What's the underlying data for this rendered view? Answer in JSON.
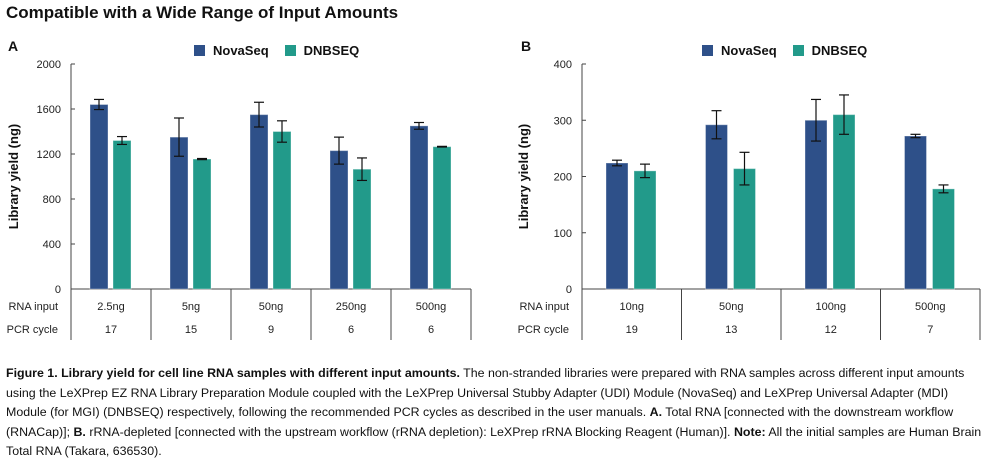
{
  "page": {
    "title": "Compatible with a Wide Range of Input Amounts"
  },
  "legend": {
    "items": [
      {
        "label": "NovaSeq",
        "color": "#2e5089"
      },
      {
        "label": "DNBSEQ",
        "color": "#229a8a"
      }
    ]
  },
  "chart_data": [
    {
      "panel": "A",
      "type": "bar",
      "ylabel": "Library yield (ng)",
      "xlabel": "",
      "ylim": [
        0,
        2000
      ],
      "yticks": [
        0,
        400,
        800,
        1200,
        1600,
        2000
      ],
      "grid": false,
      "legend_position": "top-center",
      "row_labels": {
        "input": "RNA input",
        "pcr": "PCR cycle"
      },
      "categories": [
        "2.5ng",
        "5ng",
        "50ng",
        "250ng",
        "500ng"
      ],
      "pcr_cycles": [
        "17",
        "15",
        "9",
        "6",
        "6"
      ],
      "series": [
        {
          "name": "NovaSeq",
          "color": "#2e5089",
          "values": [
            1640,
            1350,
            1550,
            1230,
            1450
          ],
          "errors": [
            45,
            170,
            110,
            120,
            30
          ]
        },
        {
          "name": "DNBSEQ",
          "color": "#229a8a",
          "values": [
            1320,
            1155,
            1400,
            1065,
            1265
          ],
          "errors": [
            35,
            5,
            95,
            100,
            3
          ]
        }
      ]
    },
    {
      "panel": "B",
      "type": "bar",
      "ylabel": "Library yield (ng)",
      "xlabel": "",
      "ylim": [
        0,
        400
      ],
      "yticks": [
        0,
        100,
        200,
        300,
        400
      ],
      "grid": false,
      "legend_position": "top-center",
      "row_labels": {
        "input": "RNA input",
        "pcr": "PCR cycle"
      },
      "categories": [
        "10ng",
        "50ng",
        "100ng",
        "500ng"
      ],
      "pcr_cycles": [
        "19",
        "13",
        "12",
        "7"
      ],
      "series": [
        {
          "name": "NovaSeq",
          "color": "#2e5089",
          "values": [
            224,
            292,
            300,
            272
          ],
          "errors": [
            5,
            25,
            37,
            3
          ]
        },
        {
          "name": "DNBSEQ",
          "color": "#229a8a",
          "values": [
            210,
            214,
            310,
            178
          ],
          "errors": [
            12,
            29,
            35,
            7
          ]
        }
      ]
    }
  ],
  "caption": {
    "figure_bold": "Figure 1. Library yield for cell line RNA samples with different input amounts.",
    "text1": " The non-stranded libraries were prepared with RNA samples across different input amounts using the LeXPrep EZ RNA Library Preparation Module coupled with the LeXPrep Universal Stubby Adapter (UDI) Module (NovaSeq) and LeXPrep Universal Adapter (MDI) Module (for MGI) (DNBSEQ) respectively, following the recommended PCR cycles as described in the user manuals. ",
    "a_bold": "A.",
    "text2": " Total RNA [connected with the downstream workflow (RNACap)]; ",
    "b_bold": "B.",
    "text3": " rRNA-depleted [connected with the upstream workflow (rRNA depletion): LeXPrep rRNA Blocking Reagent (Human)]. ",
    "note_bold": "Note:",
    "text4": " All the initial samples are Human Brain Total RNA (Takara, 636530)."
  }
}
